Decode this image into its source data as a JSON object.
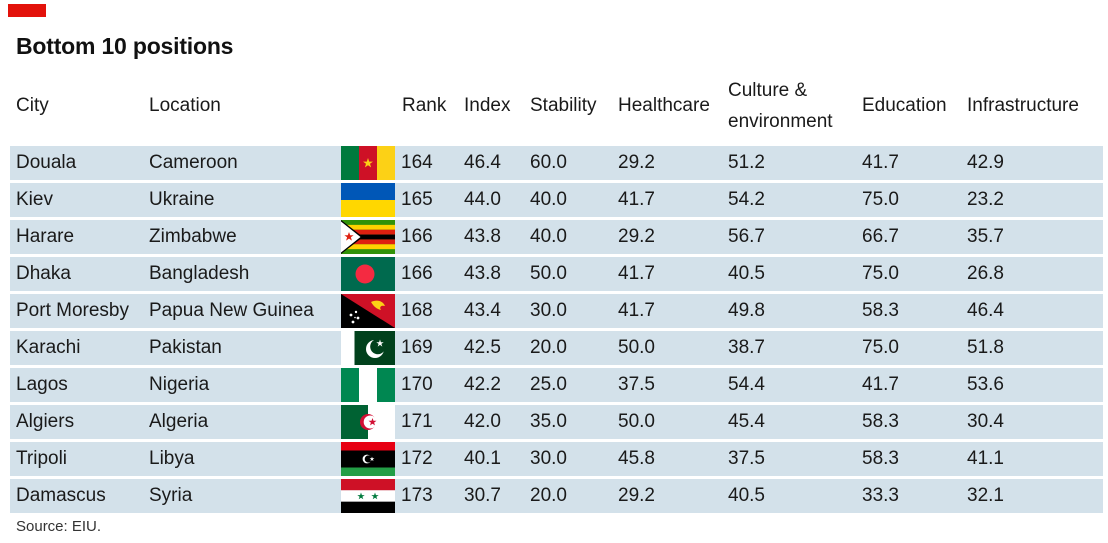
{
  "chart_data": {
    "type": "table",
    "title": "Bottom 10 positions",
    "source": "Source: EIU.",
    "columns": [
      "City",
      "Location",
      "Rank",
      "Index",
      "Stability",
      "Healthcare",
      "Culture & environment",
      "Education",
      "Infrastructure"
    ],
    "column_header_lines": {
      "culture_line1": "Culture &",
      "culture_line2": "environment"
    },
    "rows": [
      {
        "city": "Douala",
        "location": "Cameroon",
        "flag": "cameroon-flag",
        "rank": "164",
        "index": "46.4",
        "stability": "60.0",
        "healthcare": "29.2",
        "culture": "51.2",
        "education": "41.7",
        "infrastructure": "42.9"
      },
      {
        "city": "Kiev",
        "location": "Ukraine",
        "flag": "ukraine-flag",
        "rank": "165",
        "index": "44.0",
        "stability": "40.0",
        "healthcare": "41.7",
        "culture": "54.2",
        "education": "75.0",
        "infrastructure": "23.2"
      },
      {
        "city": "Harare",
        "location": "Zimbabwe",
        "flag": "zimbabwe-flag",
        "rank": "166",
        "index": "43.8",
        "stability": "40.0",
        "healthcare": "29.2",
        "culture": "56.7",
        "education": "66.7",
        "infrastructure": "35.7"
      },
      {
        "city": "Dhaka",
        "location": "Bangladesh",
        "flag": "bangladesh-flag",
        "rank": "166",
        "index": "43.8",
        "stability": "50.0",
        "healthcare": "41.7",
        "culture": "40.5",
        "education": "75.0",
        "infrastructure": "26.8"
      },
      {
        "city": "Port Moresby",
        "location": "Papua New Guinea",
        "flag": "papua-new-guinea-flag",
        "rank": "168",
        "index": "43.4",
        "stability": "30.0",
        "healthcare": "41.7",
        "culture": "49.8",
        "education": "58.3",
        "infrastructure": "46.4"
      },
      {
        "city": "Karachi",
        "location": "Pakistan",
        "flag": "pakistan-flag",
        "rank": "169",
        "index": "42.5",
        "stability": "20.0",
        "healthcare": "50.0",
        "culture": "38.7",
        "education": "75.0",
        "infrastructure": "51.8"
      },
      {
        "city": "Lagos",
        "location": "Nigeria",
        "flag": "nigeria-flag",
        "rank": "170",
        "index": "42.2",
        "stability": "25.0",
        "healthcare": "37.5",
        "culture": "54.4",
        "education": "41.7",
        "infrastructure": "53.6"
      },
      {
        "city": "Algiers",
        "location": "Algeria",
        "flag": "algeria-flag",
        "rank": "171",
        "index": "42.0",
        "stability": "35.0",
        "healthcare": "50.0",
        "culture": "45.4",
        "education": "58.3",
        "infrastructure": "30.4"
      },
      {
        "city": "Tripoli",
        "location": "Libya",
        "flag": "libya-flag",
        "rank": "172",
        "index": "40.1",
        "stability": "30.0",
        "healthcare": "45.8",
        "culture": "37.5",
        "education": "58.3",
        "infrastructure": "41.1"
      },
      {
        "city": "Damascus",
        "location": "Syria",
        "flag": "syria-flag",
        "rank": "173",
        "index": "30.7",
        "stability": "20.0",
        "healthcare": "29.2",
        "culture": "40.5",
        "education": "33.3",
        "infrastructure": "32.1"
      }
    ]
  },
  "colors": {
    "accent": "#e3120b",
    "row_background": "#d3e1ea",
    "text": "#1a1a1a"
  }
}
